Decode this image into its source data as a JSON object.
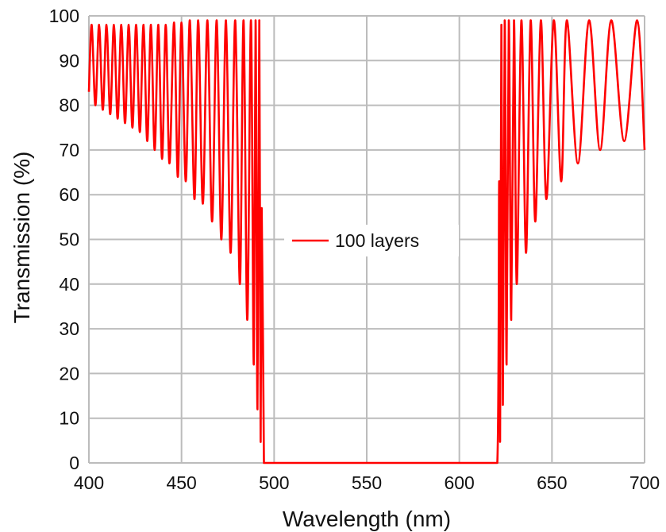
{
  "chart_data": {
    "type": "line",
    "xlabel": "Wavelength (nm)",
    "ylabel": "Transmission (%)",
    "xlim": [
      400,
      700
    ],
    "ylim": [
      0,
      100
    ],
    "x_ticks": [
      400,
      450,
      500,
      550,
      600,
      650,
      700
    ],
    "y_ticks": [
      0,
      10,
      20,
      30,
      40,
      50,
      60,
      70,
      80,
      90,
      100
    ],
    "x_tick_labels": [
      "400",
      "450",
      "500",
      "550",
      "600",
      "650",
      "700"
    ],
    "y_tick_labels": [
      "0",
      "10",
      "20",
      "30",
      "40",
      "50",
      "60",
      "70",
      "80",
      "90",
      "100"
    ],
    "grid": true,
    "legend_position": "center",
    "series": [
      {
        "name": "100 layers",
        "color": "#ff0000",
        "x": [
          400,
          401.5,
          403.5,
          405.5,
          407.5,
          409.5,
          411.5,
          413.5,
          415.5,
          417.5,
          419.5,
          421.5,
          423.5,
          425.5,
          427.5,
          429.5,
          431.5,
          433.5,
          435.5,
          437.5,
          439.5,
          441.5,
          443.5,
          446,
          448,
          450,
          452.3,
          454.5,
          457,
          459,
          461.5,
          464,
          466.5,
          469,
          471.5,
          474,
          476.5,
          479,
          481.5,
          483.5,
          485.5,
          487.5,
          489,
          490,
          491,
          492,
          492.7,
          493.3,
          494.5,
          495,
          600,
          620.5,
          621.5,
          622,
          622.7,
          623.5,
          624.5,
          625.5,
          626.7,
          628,
          629.5,
          631,
          633.5,
          636,
          638.5,
          641,
          644,
          647,
          651,
          655,
          658,
          664,
          670,
          676,
          682,
          689,
          696,
          700
        ],
        "values": [
          83,
          98,
          80,
          98,
          79,
          98,
          78,
          98,
          77,
          98,
          76,
          98,
          75,
          98,
          74,
          98,
          72,
          98,
          70,
          98,
          68,
          98,
          67,
          98.5,
          64,
          98.5,
          63,
          99,
          59,
          99,
          58,
          99,
          54,
          99,
          50,
          99,
          47,
          99,
          40,
          99,
          32,
          99,
          22,
          99,
          12,
          99,
          5,
          57,
          0,
          0,
          0,
          0,
          63,
          5,
          98,
          13,
          99,
          22,
          99,
          32,
          99,
          40,
          99,
          47,
          99,
          54,
          99,
          59,
          99,
          63,
          99,
          67,
          99,
          70,
          99,
          72,
          99,
          70
        ]
      }
    ]
  }
}
